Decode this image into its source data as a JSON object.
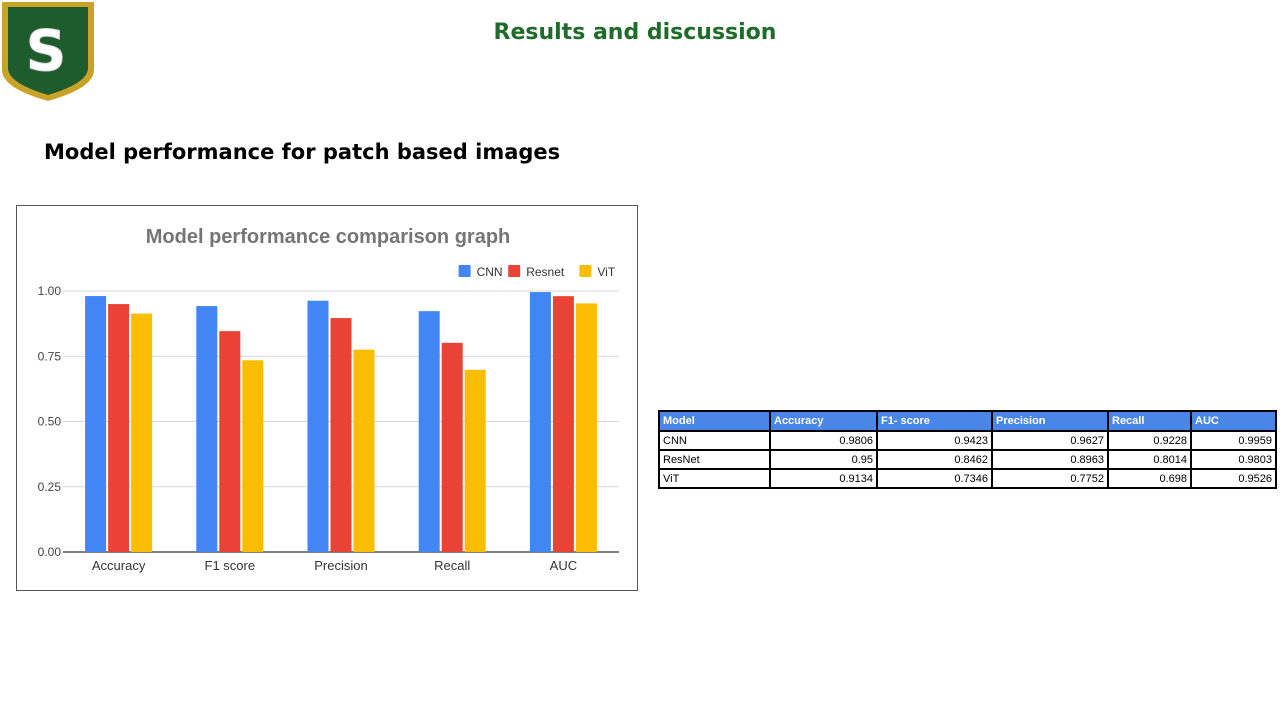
{
  "header": {
    "title": "Results and discussion"
  },
  "logo": {
    "letter": "S",
    "colors": {
      "shield": "#1e5c2e",
      "border": "#c9a227"
    }
  },
  "section": {
    "subtitle": "Model performance for patch based images"
  },
  "chart_data": {
    "type": "bar",
    "title": "Model performance comparison graph",
    "categories": [
      "Accuracy",
      "F1 score",
      "Precision",
      "Recall",
      "AUC"
    ],
    "series": [
      {
        "name": "CNN",
        "color": "#4285f4",
        "values": [
          0.9806,
          0.9423,
          0.9627,
          0.9228,
          0.9959
        ]
      },
      {
        "name": "Resnet",
        "color": "#ea4335",
        "values": [
          0.95,
          0.8462,
          0.8963,
          0.8014,
          0.9803
        ]
      },
      {
        "name": "ViT",
        "color": "#fbbc04",
        "values": [
          0.9134,
          0.7346,
          0.7752,
          0.698,
          0.9526
        ]
      }
    ],
    "yticks": [
      "0.00",
      "0.25",
      "0.50",
      "0.75",
      "1.00"
    ],
    "ylim": [
      0,
      1.0
    ],
    "legend": "top-right",
    "grid": true
  },
  "table": {
    "headers": [
      "Model",
      "Accuracy",
      "F1- score",
      "Precision",
      "Recall",
      "AUC"
    ],
    "rows": [
      [
        "CNN",
        "0.9806",
        "0.9423",
        "0.9627",
        "0.9228",
        "0.9959"
      ],
      [
        "ResNet",
        "0.95",
        "0.8462",
        "0.8963",
        "0.8014",
        "0.9803"
      ],
      [
        "ViT",
        "0.9134",
        "0.7346",
        "0.7752",
        "0.698",
        "0.9526"
      ]
    ]
  }
}
